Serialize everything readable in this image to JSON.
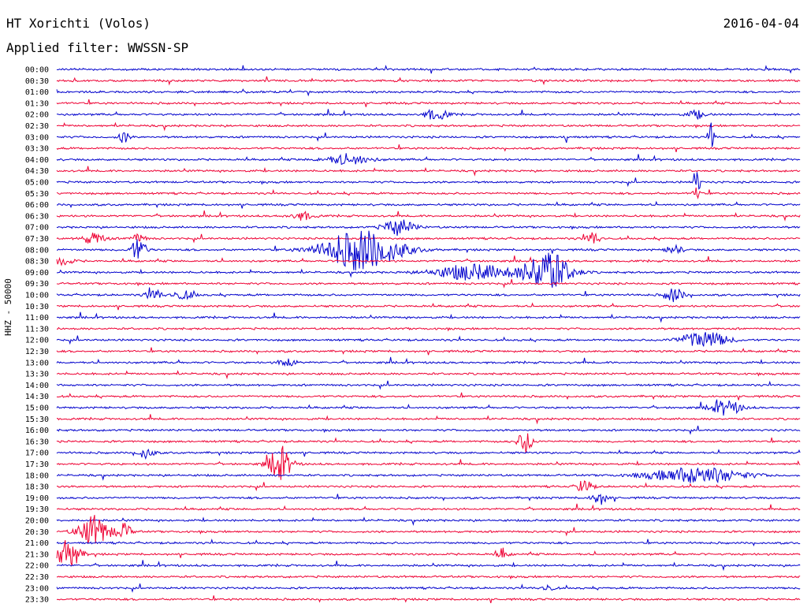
{
  "header": {
    "station": "HT Xorichti (Volos)",
    "date": "2016-04-04",
    "filter": "Applied filter: WWSSN-SP"
  },
  "colors": {
    "blue": "#0000cc",
    "red": "#ee0033",
    "background": "#ffffff",
    "text": "#000000"
  },
  "chart_data": {
    "type": "line",
    "title": "HT Xorichti (Volos)",
    "subtitle": "Applied filter: WWSSN-SP",
    "ylabel": "HHZ - 50000",
    "xlabel": "",
    "row_order": "top-to-bottom",
    "trace_colors": [
      "#0000cc",
      "#ee0033"
    ],
    "grid": false,
    "legend": "none",
    "row_labels": [
      "00:00",
      "00:30",
      "01:00",
      "01:30",
      "02:00",
      "02:30",
      "03:00",
      "03:30",
      "04:00",
      "04:30",
      "05:00",
      "05:30",
      "06:00",
      "06:30",
      "07:00",
      "07:30",
      "08:00",
      "08:30",
      "09:00",
      "09:30",
      "10:00",
      "10:30",
      "11:00",
      "11:30",
      "12:00",
      "12:30",
      "13:00",
      "13:30",
      "14:00",
      "14:30",
      "15:00",
      "15:30",
      "16:00",
      "16:30",
      "17:00",
      "17:30",
      "18:00",
      "18:30",
      "19:00",
      "19:30",
      "20:00",
      "20:30",
      "21:00",
      "21:30",
      "22:00",
      "22:30",
      "23:00",
      "23:30"
    ],
    "events": [
      {
        "row": 3.0,
        "x": 0.09,
        "amp": 9,
        "width": 0.006
      },
      {
        "row": 3.0,
        "x": 0.685,
        "amp": 14,
        "width": 0.002
      },
      {
        "row": 3.0,
        "x": 0.88,
        "amp": 34,
        "width": 0.003
      },
      {
        "row": 5.0,
        "x": 0.86,
        "amp": 22,
        "width": 0.004
      },
      {
        "row": 5.5,
        "x": 0.86,
        "amp": 10,
        "width": 0.004
      },
      {
        "row": 2.0,
        "x": 0.51,
        "amp": 7,
        "width": 0.015
      },
      {
        "row": 2.0,
        "x": 0.86,
        "amp": 5,
        "width": 0.012
      },
      {
        "row": 4.0,
        "x": 0.39,
        "amp": 6,
        "width": 0.03
      },
      {
        "row": 6.5,
        "x": 0.33,
        "amp": 5,
        "width": 0.015
      },
      {
        "row": 7.0,
        "x": 0.46,
        "amp": 10,
        "width": 0.02
      },
      {
        "row": 7.5,
        "x": 0.05,
        "amp": 7,
        "width": 0.015
      },
      {
        "row": 7.5,
        "x": 0.11,
        "amp": 5,
        "width": 0.01
      },
      {
        "row": 7.5,
        "x": 0.72,
        "amp": 8,
        "width": 0.01
      },
      {
        "row": 8.0,
        "x": 0.11,
        "amp": 14,
        "width": 0.01
      },
      {
        "row": 8.0,
        "x": 0.41,
        "amp": 26,
        "width": 0.05
      },
      {
        "row": 8.0,
        "x": 0.83,
        "amp": 6,
        "width": 0.01
      },
      {
        "row": 8.5,
        "x": 0.005,
        "amp": 6,
        "width": 0.015
      },
      {
        "row": 9.0,
        "x": 0.56,
        "amp": 10,
        "width": 0.05
      },
      {
        "row": 9.0,
        "x": 0.66,
        "amp": 26,
        "width": 0.03
      },
      {
        "row": 10.0,
        "x": 0.13,
        "amp": 8,
        "width": 0.01
      },
      {
        "row": 10.0,
        "x": 0.17,
        "amp": 5,
        "width": 0.015
      },
      {
        "row": 10.0,
        "x": 0.83,
        "amp": 9,
        "width": 0.012
      },
      {
        "row": 12.0,
        "x": 0.87,
        "amp": 11,
        "width": 0.03
      },
      {
        "row": 13.0,
        "x": 0.31,
        "amp": 7,
        "width": 0.01
      },
      {
        "row": 15.0,
        "x": 0.9,
        "amp": 9,
        "width": 0.02
      },
      {
        "row": 17.0,
        "x": 0.12,
        "amp": 7,
        "width": 0.01
      },
      {
        "row": 16.5,
        "x": 0.63,
        "amp": 14,
        "width": 0.01
      },
      {
        "row": 17.5,
        "x": 0.3,
        "amp": 20,
        "width": 0.015
      },
      {
        "row": 18.0,
        "x": 0.86,
        "amp": 10,
        "width": 0.06
      },
      {
        "row": 18.5,
        "x": 0.71,
        "amp": 9,
        "width": 0.01
      },
      {
        "row": 19.0,
        "x": 0.73,
        "amp": 8,
        "width": 0.01
      },
      {
        "row": 20.5,
        "x": 0.05,
        "amp": 20,
        "width": 0.02
      },
      {
        "row": 20.5,
        "x": 0.09,
        "amp": 10,
        "width": 0.01
      },
      {
        "row": 21.5,
        "x": 0.015,
        "amp": 20,
        "width": 0.015
      },
      {
        "row": 21.5,
        "x": 0.6,
        "amp": 7,
        "width": 0.008
      },
      {
        "row": 23.0,
        "x": 0.66,
        "amp": 4,
        "width": 0.008
      }
    ]
  }
}
